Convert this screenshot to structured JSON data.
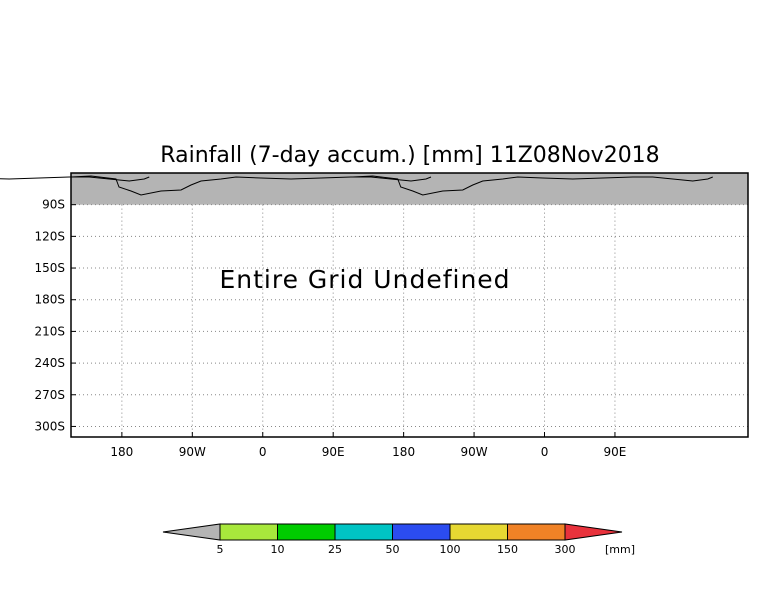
{
  "chart_data": {
    "type": "heatmap",
    "title": "Rainfall (7-day accum.) [mm] 11Z08Nov2018",
    "annotation": "Entire Grid Undefined",
    "x_tick_labels": [
      "180",
      "90W",
      "0",
      "90E",
      "180",
      "90W",
      "0",
      "90E"
    ],
    "x_ticks_deg": [
      -180,
      -90,
      0,
      90,
      180,
      270,
      360,
      450
    ],
    "xlim": [
      -245,
      620
    ],
    "y_tick_labels": [
      "90S",
      "120S",
      "150S",
      "180S",
      "210S",
      "240S",
      "270S",
      "300S"
    ],
    "y_ticks_deg": [
      -90,
      -120,
      -150,
      -180,
      -210,
      -240,
      -270,
      -300
    ],
    "ylim": [
      -310,
      -60
    ],
    "grid": true,
    "colorbar": {
      "unit_label": "[mm]",
      "levels": [
        "5",
        "10",
        "25",
        "50",
        "100",
        "150",
        "300"
      ],
      "colors": [
        "#a8e83c",
        "#00cc00",
        "#00c4c4",
        "#2b4cf0",
        "#e6d832",
        "#f08226",
        "#e8323c"
      ],
      "under_color": "#b4b4b4",
      "over_color": "#e8323c"
    },
    "land_color": "#b4b4b4"
  }
}
